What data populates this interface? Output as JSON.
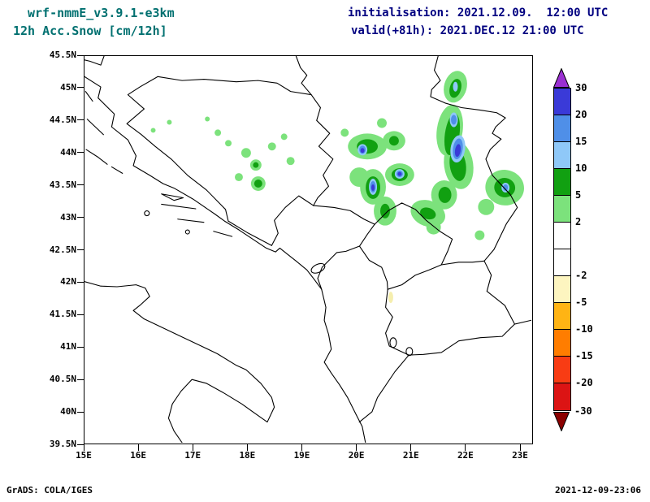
{
  "header": {
    "model": "wrf-nmmE_v3.9.1-e3km",
    "product": "12h Acc.Snow [cm/12h]",
    "init": "initialisation: 2021.12.09.  12:00 UTC",
    "valid": "valid(+81h): 2021.DEC.12 21:00 UTC"
  },
  "footer": {
    "left": "GrADS: COLA/IGES",
    "right": "2021-12-09-23:06"
  },
  "axes": {
    "y_ticks": [
      "45.5N",
      "45N",
      "44.5N",
      "44N",
      "43.5N",
      "43N",
      "42.5N",
      "42N",
      "41.5N",
      "41N",
      "40.5N",
      "40N",
      "39.5N"
    ],
    "x_ticks": [
      "15E",
      "16E",
      "17E",
      "18E",
      "19E",
      "20E",
      "21E",
      "22E",
      "23E"
    ]
  },
  "colorbar": {
    "top_arrow_color": "#9a30d2",
    "bottom_arrow_color": "#8b0000",
    "bottom_arrow_label": "-30",
    "cells": [
      {
        "label": "30",
        "color": "#3a3ad8"
      },
      {
        "label": "20",
        "color": "#4f8fe8"
      },
      {
        "label": "15",
        "color": "#8fc8f8"
      },
      {
        "label": "10",
        "color": "#11a011"
      },
      {
        "label": "5",
        "color": "#7ce27c"
      },
      {
        "label": "2",
        "color": "#ffffff"
      },
      {
        "label": "",
        "color": "#ffffff"
      },
      {
        "label": "-2",
        "color": "#fdf5c0"
      },
      {
        "label": "-5",
        "color": "#ffb414"
      },
      {
        "label": "-10",
        "color": "#ff7d00"
      },
      {
        "label": "-15",
        "color": "#f83c14"
      },
      {
        "label": "-20",
        "color": "#dc1414"
      }
    ]
  },
  "palette": {
    "snow_2_5": "#7ce27c",
    "snow_5_10": "#11a011",
    "snow_10_15": "#8fc8f8",
    "snow_15_20": "#4f8fe8",
    "snow_20_30": "#3a3ad8",
    "neg_2_5": "#f5eeae",
    "title_color": "#007070",
    "time_color": "#000080"
  },
  "chart_data": {
    "type": "heatmap",
    "subtype": "shaded-contour-weather-map",
    "title": "12h Acc.Snow [cm/12h]",
    "variable": "12-hour accumulated snowfall",
    "units": "cm/12h",
    "lon_ticks_deg_e": [
      15,
      16,
      17,
      18,
      19,
      20,
      21,
      22,
      23
    ],
    "lat_ticks_deg_n": [
      39.5,
      40,
      40.5,
      41,
      41.5,
      42,
      42.5,
      43,
      43.5,
      44,
      44.5,
      45,
      45.5
    ],
    "contour_levels_cm": [
      -30,
      -20,
      -15,
      -10,
      -5,
      -2,
      2,
      5,
      10,
      15,
      20,
      30
    ],
    "legend_position": "right",
    "grid": false
  }
}
